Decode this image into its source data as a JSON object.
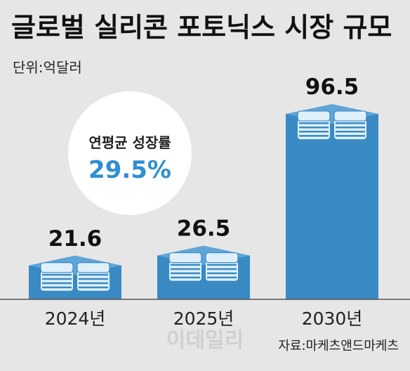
{
  "chart_data": {
    "type": "bar",
    "title": "글로벌 실리콘 포토닉스 시장 규모",
    "unit": "단위:억달러",
    "categories": [
      "2024년",
      "2025년",
      "2030년"
    ],
    "values": [
      21.6,
      26.5,
      96.5
    ],
    "value_labels": [
      "21.6",
      "26.5",
      "96.5"
    ],
    "cagr": {
      "label": "연평균 성장률",
      "value": "29.5%"
    },
    "source": "자료:마케츠앤드마케츠",
    "watermark": "이데일리",
    "colors": {
      "background": "#e6e6e6",
      "bar": "#3a8ac4",
      "bar_top": "#5ea5d8",
      "chip_side": "#2d75ad",
      "chip_layer": "#dff0fb",
      "chip_stripe": "#3a8ac4",
      "accent": "#2f8fd0",
      "circle": "#ffffff"
    }
  }
}
